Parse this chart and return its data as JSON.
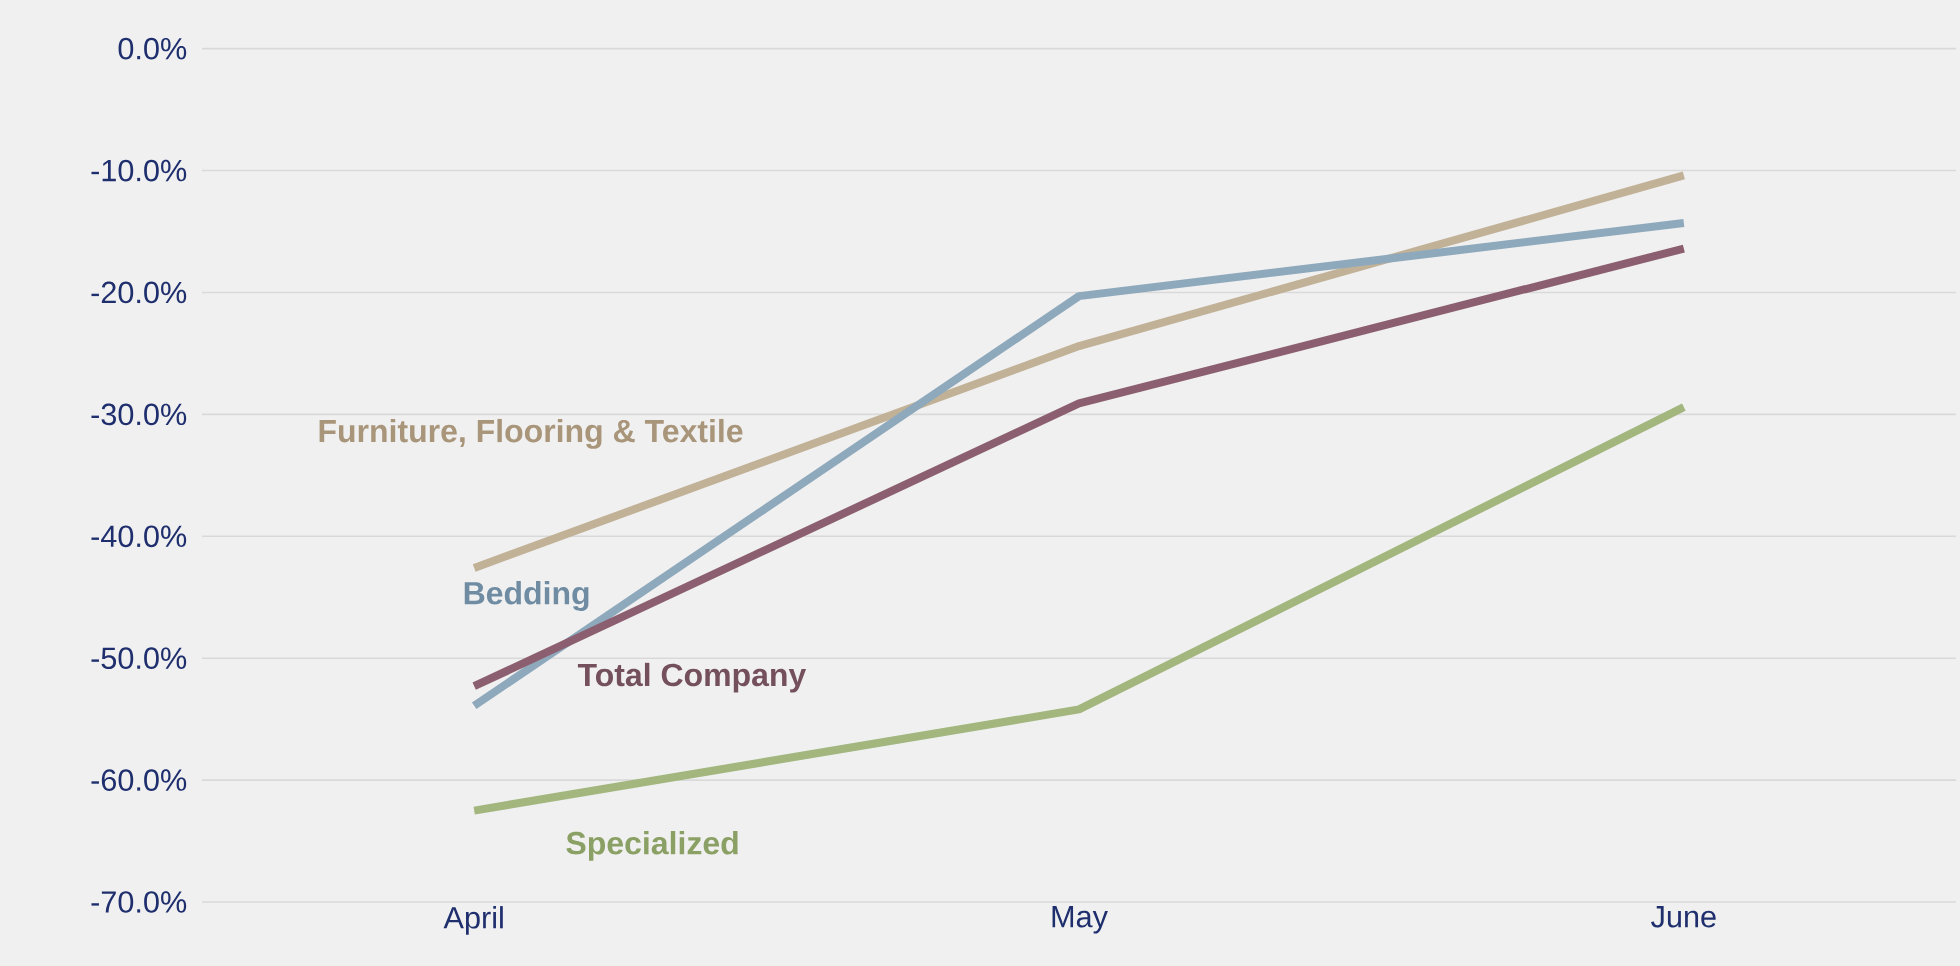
{
  "chart_data": {
    "type": "line",
    "categories": [
      "April",
      "May",
      "June"
    ],
    "series": [
      {
        "name": "Furniture, Flooring & Textile",
        "color": "#c1b197",
        "values": [
          -42.6,
          -24.4,
          -10.4
        ]
      },
      {
        "name": "Bedding",
        "color": "#8fa9bc",
        "values": [
          -53.9,
          -20.3,
          -14.3
        ]
      },
      {
        "name": "Total Company",
        "color": "#8b5f6f",
        "values": [
          -52.3,
          -29.1,
          -16.4
        ]
      },
      {
        "name": "Specialized",
        "color": "#a2b67e",
        "values": [
          -62.5,
          -54.2,
          -29.4
        ]
      }
    ],
    "ylim": [
      -70,
      0
    ],
    "yticks": [
      {
        "value": -70,
        "label": "-70.0%"
      },
      {
        "value": -60,
        "label": "-60.0%"
      },
      {
        "value": -50,
        "label": "-50.0%"
      },
      {
        "value": -40,
        "label": "-40.0%"
      },
      {
        "value": -30,
        "label": "-30.0%"
      },
      {
        "value": -20,
        "label": "-20.0%"
      },
      {
        "value": -10,
        "label": "-10.0%"
      },
      {
        "value": 0,
        "label": "0.0%"
      }
    ],
    "grid": "y",
    "legend": false,
    "marker": "none",
    "line_style": "solid"
  }
}
